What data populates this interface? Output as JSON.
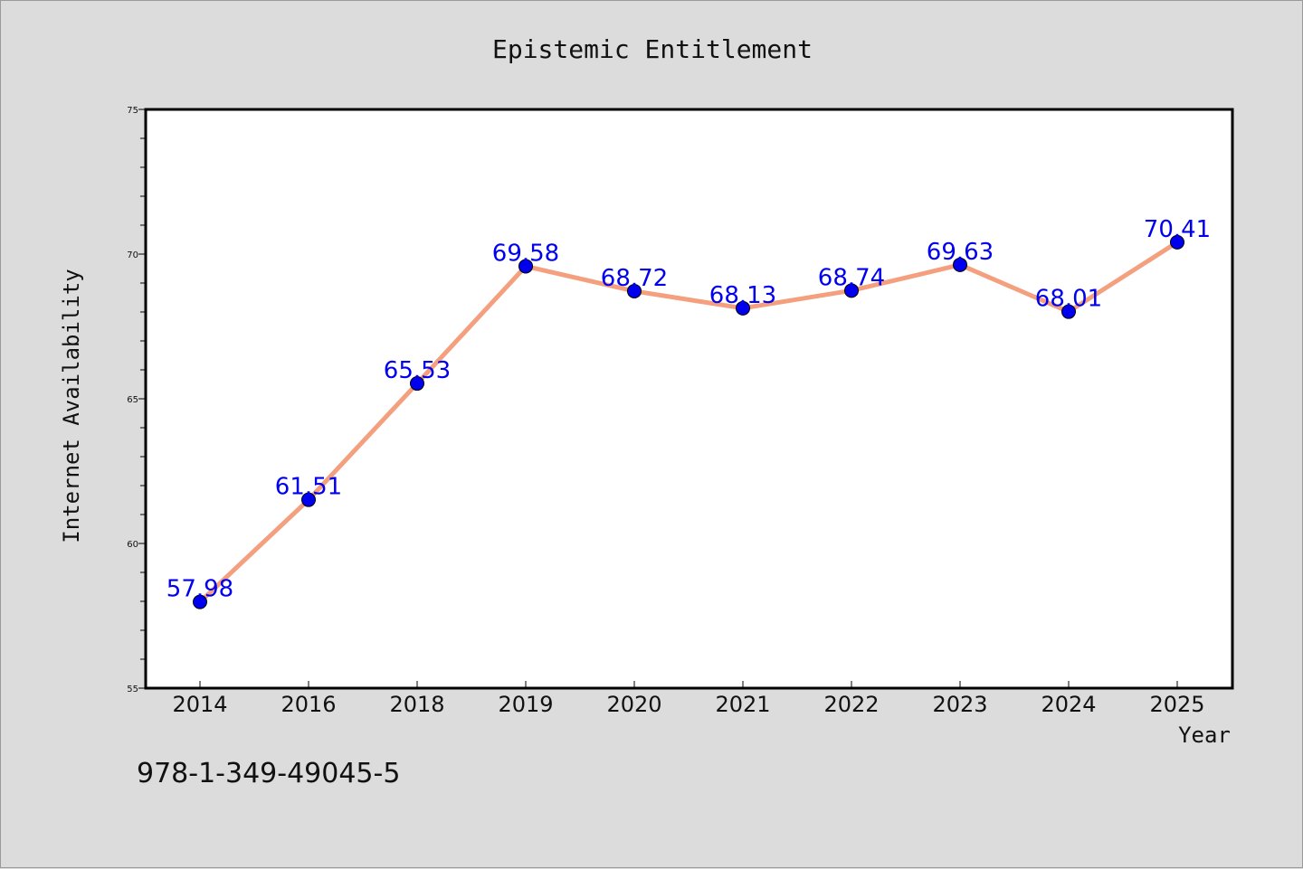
{
  "chart_data": {
    "type": "line",
    "title": "Epistemic Entitlement",
    "xlabel": "Year",
    "ylabel": "Internet Availability",
    "categories": [
      "2014",
      "2016",
      "2018",
      "2019",
      "2020",
      "2021",
      "2022",
      "2023",
      "2024",
      "2025"
    ],
    "series": [
      {
        "values": [
          57.98,
          61.51,
          65.53,
          69.58,
          68.72,
          68.13,
          68.74,
          69.63,
          68.01,
          70.41
        ]
      }
    ],
    "data_labels": [
      "57.98",
      "61.51",
      "65.53",
      "69.58",
      "68.72",
      "68.13",
      "68.74",
      "69.63",
      "68.01",
      "70.41"
    ],
    "ylim": [
      55,
      75
    ],
    "yticks": [
      55,
      60,
      65,
      70,
      75
    ],
    "grid": false,
    "legend": "none",
    "colors": {
      "line": "#f4a07f",
      "marker": "#0000ee",
      "data_label": "#0000ee",
      "background": "#dcdcdc",
      "plot_area": "#ffffff"
    }
  },
  "footer": {
    "code": "978-1-349-49045-5"
  }
}
